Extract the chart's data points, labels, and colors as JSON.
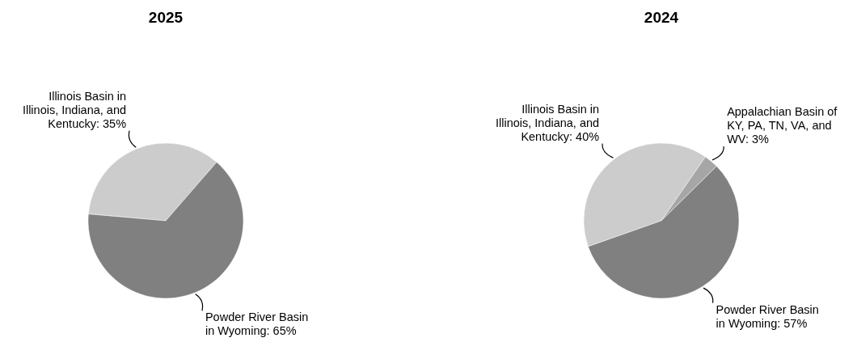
{
  "chart_data": [
    {
      "type": "pie",
      "title": "2025",
      "categories": [
        "Illinois Basin in Illinois, Indiana, and Kentucky",
        "Powder River Basin in Wyoming"
      ],
      "values": [
        35,
        65
      ],
      "colors": [
        "#cccccc",
        "#808080"
      ],
      "value_labels": [
        "35%",
        "65%"
      ]
    },
    {
      "type": "pie",
      "title": "2024",
      "categories": [
        "Illinois Basin in Illinois, Indiana, and Kentucky",
        "Appalachian Basin of KY, PA, TN, VA, and WV",
        "Powder River Basin in Wyoming"
      ],
      "values": [
        40,
        3,
        57
      ],
      "colors": [
        "#cccccc",
        "#a6a6a6",
        "#808080"
      ],
      "value_labels": [
        "40%",
        "3%",
        "57%"
      ]
    }
  ]
}
